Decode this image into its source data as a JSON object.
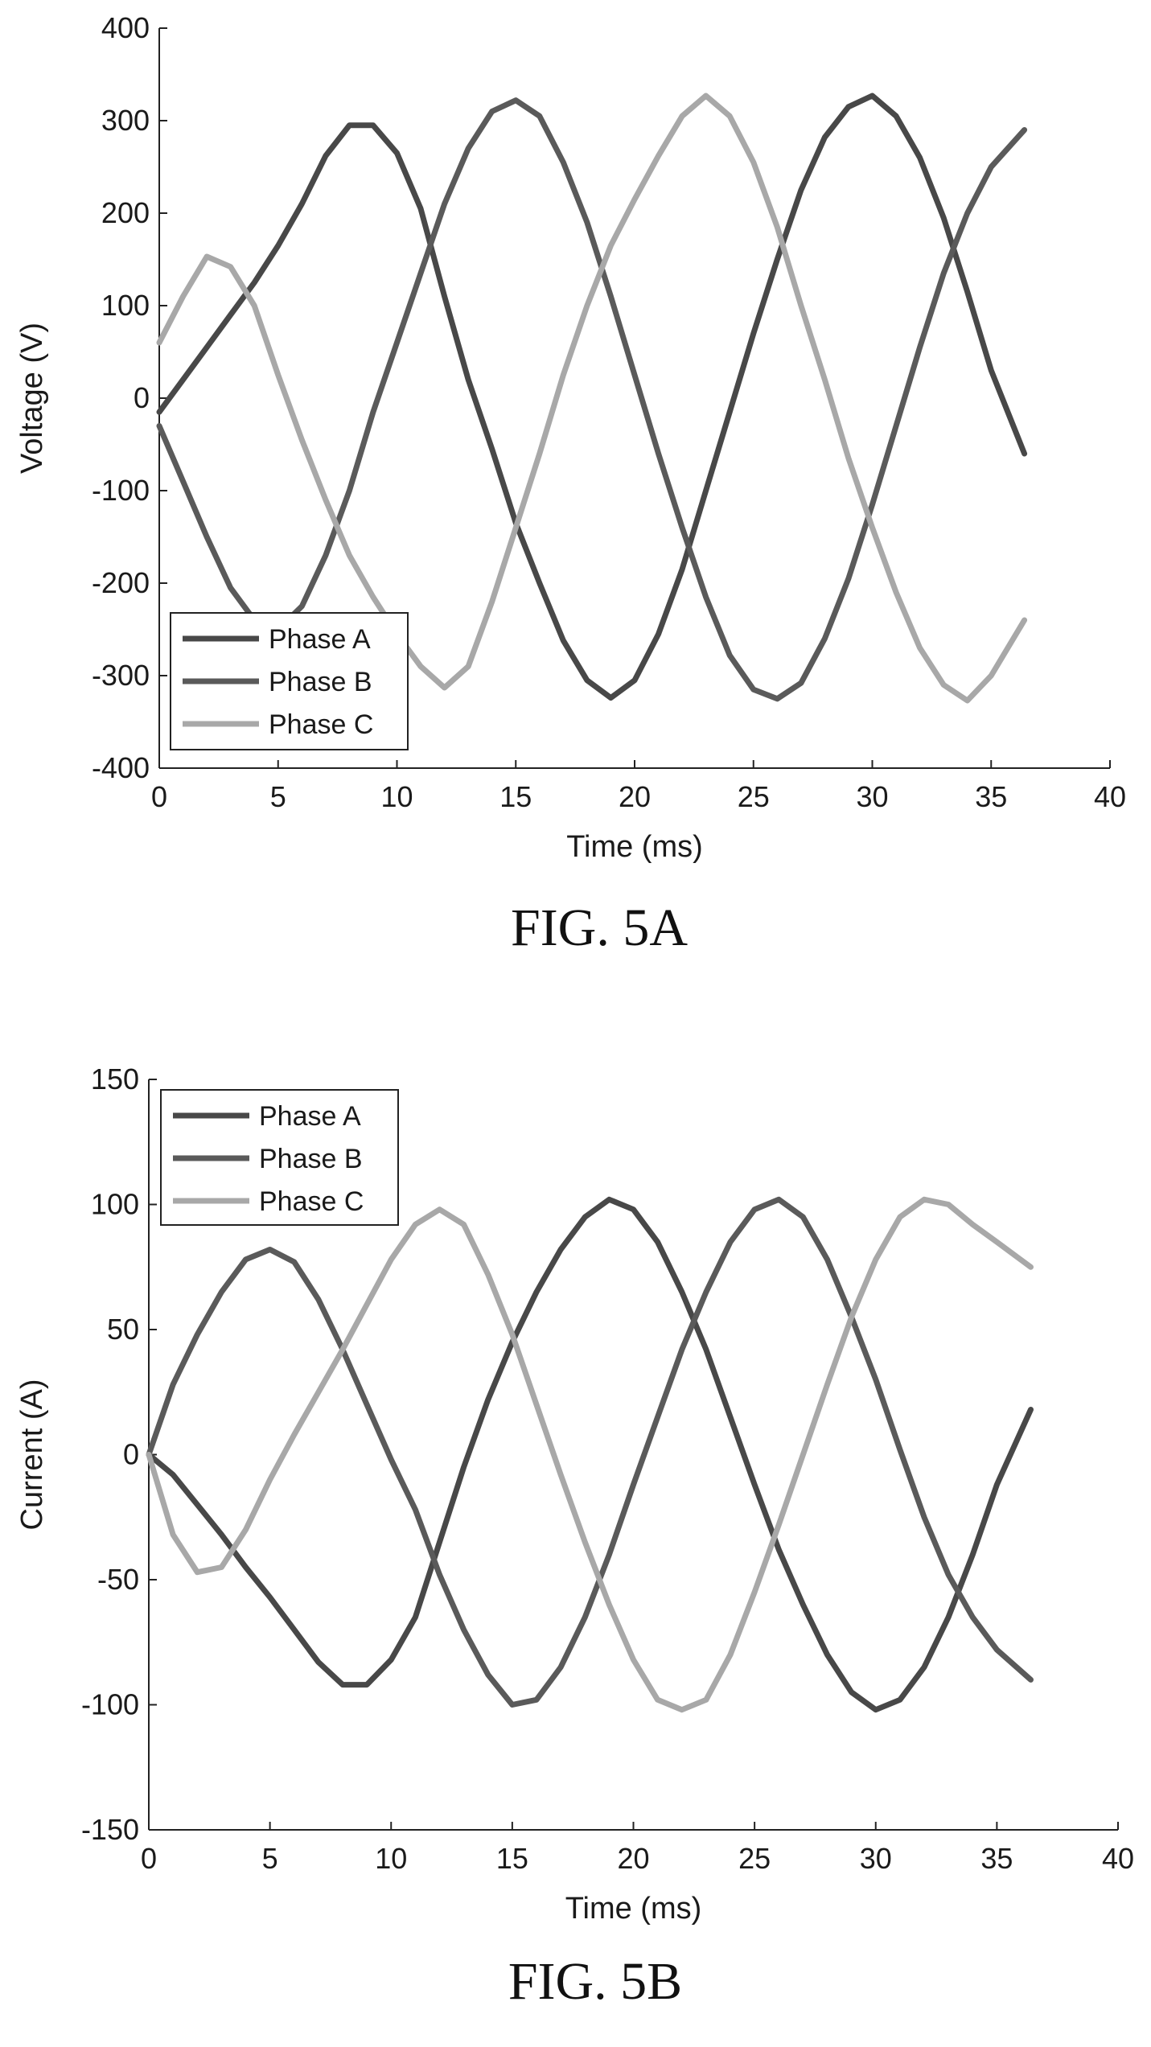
{
  "chart_data": [
    {
      "type": "line",
      "caption": "FIG. 5A",
      "xlabel": "Time (ms)",
      "ylabel": "Voltage (V)",
      "xlim": [
        0,
        40
      ],
      "ylim": [
        -400,
        400
      ],
      "xticks": [
        0,
        5,
        10,
        15,
        20,
        25,
        30,
        35,
        40
      ],
      "yticks": [
        -400,
        -300,
        -200,
        -100,
        0,
        100,
        200,
        300,
        400
      ],
      "xtick_labels": [
        "0",
        "5",
        "10",
        "15",
        "20",
        "25",
        "30",
        "35",
        "40"
      ],
      "ytick_labels": [
        "-400",
        "-300",
        "-200",
        "-100",
        "0",
        "100",
        "200",
        "300",
        "400"
      ],
      "legend_position": "bottom-left",
      "grid": false,
      "series": [
        {
          "name": "Phase A",
          "color": "#484848",
          "x": [
            0,
            1,
            2,
            3,
            4,
            5,
            6,
            7,
            8,
            9,
            10,
            11,
            12,
            13,
            14,
            15,
            16,
            17,
            18,
            19,
            20,
            21,
            22,
            23,
            24,
            25,
            26,
            27,
            28,
            29,
            30,
            31,
            32,
            33,
            34,
            35,
            36.4
          ],
          "y": [
            -15,
            20,
            55,
            90,
            125,
            165,
            210,
            262,
            295,
            295,
            265,
            205,
            110,
            20,
            -55,
            -135,
            -200,
            -262,
            -305,
            -324,
            -305,
            -255,
            -185,
            -100,
            -15,
            70,
            150,
            225,
            282,
            315,
            327,
            305,
            260,
            195,
            115,
            30,
            -60
          ]
        },
        {
          "name": "Phase B",
          "color": "#5a5a5a",
          "x": [
            0,
            1,
            2,
            3,
            4,
            5,
            6,
            7,
            8,
            9,
            10,
            11,
            12,
            13,
            14,
            15,
            16,
            17,
            18,
            19,
            20,
            21,
            22,
            23,
            24,
            25,
            26,
            27,
            28,
            29,
            30,
            31,
            32,
            33,
            34,
            35,
            36.4
          ],
          "y": [
            -30,
            -90,
            -150,
            -205,
            -240,
            -250,
            -225,
            -170,
            -100,
            -15,
            60,
            135,
            210,
            270,
            310,
            322,
            305,
            255,
            190,
            110,
            25,
            -60,
            -140,
            -215,
            -278,
            -315,
            -325,
            -308,
            -260,
            -195,
            -115,
            -30,
            55,
            135,
            200,
            250,
            290
          ]
        },
        {
          "name": "Phase C",
          "color": "#a8a8a8",
          "x": [
            0,
            1,
            2,
            3,
            4,
            5,
            6,
            7,
            8,
            9,
            10,
            11,
            12,
            13,
            14,
            15,
            16,
            17,
            18,
            19,
            20,
            21,
            22,
            23,
            24,
            25,
            26,
            27,
            28,
            29,
            30,
            31,
            32,
            33,
            34,
            35,
            36.4
          ],
          "y": [
            60,
            110,
            153,
            142,
            100,
            25,
            -45,
            -110,
            -170,
            -215,
            -255,
            -290,
            -313,
            -290,
            -220,
            -140,
            -60,
            25,
            100,
            165,
            215,
            262,
            305,
            327,
            305,
            255,
            185,
            100,
            20,
            -65,
            -140,
            -210,
            -270,
            -310,
            -327,
            -300,
            -240
          ]
        }
      ]
    },
    {
      "type": "line",
      "caption": "FIG. 5B",
      "xlabel": "Time (ms)",
      "ylabel": "Current (A)",
      "xlim": [
        0,
        40
      ],
      "ylim": [
        -150,
        150
      ],
      "xticks": [
        0,
        5,
        10,
        15,
        20,
        25,
        30,
        35,
        40
      ],
      "yticks": [
        -150,
        -100,
        -50,
        0,
        50,
        100,
        150
      ],
      "xtick_labels": [
        "0",
        "5",
        "10",
        "15",
        "20",
        "25",
        "30",
        "35",
        "40"
      ],
      "ytick_labels": [
        "-150",
        "-100",
        "-50",
        "0",
        "50",
        "100",
        "150"
      ],
      "legend_position": "top-left",
      "grid": false,
      "series": [
        {
          "name": "Phase A",
          "color": "#484848",
          "x": [
            0,
            1,
            2,
            3,
            4,
            5,
            6,
            7,
            8,
            9,
            10,
            11,
            12,
            13,
            14,
            15,
            16,
            17,
            18,
            19,
            20,
            21,
            22,
            23,
            24,
            25,
            26,
            27,
            28,
            29,
            30,
            31,
            32,
            33,
            34,
            35,
            36.4
          ],
          "y": [
            0,
            -8,
            -20,
            -32,
            -45,
            -57,
            -70,
            -83,
            -92,
            -92,
            -82,
            -65,
            -35,
            -5,
            22,
            45,
            65,
            82,
            95,
            102,
            98,
            85,
            65,
            42,
            15,
            -12,
            -38,
            -60,
            -80,
            -95,
            -102,
            -98,
            -85,
            -65,
            -40,
            -12,
            18
          ]
        },
        {
          "name": "Phase B",
          "color": "#5a5a5a",
          "x": [
            0,
            1,
            2,
            3,
            4,
            5,
            6,
            7,
            8,
            9,
            10,
            11,
            12,
            13,
            14,
            15,
            16,
            17,
            18,
            19,
            20,
            21,
            22,
            23,
            24,
            25,
            26,
            27,
            28,
            29,
            30,
            31,
            32,
            33,
            34,
            35,
            36.4
          ],
          "y": [
            0,
            28,
            48,
            65,
            78,
            82,
            77,
            62,
            42,
            20,
            -2,
            -22,
            -48,
            -70,
            -88,
            -100,
            -98,
            -85,
            -65,
            -40,
            -12,
            15,
            42,
            65,
            85,
            98,
            102,
            95,
            78,
            55,
            30,
            2,
            -25,
            -48,
            -65,
            -78,
            -90
          ]
        },
        {
          "name": "Phase C",
          "color": "#a8a8a8",
          "x": [
            0,
            1,
            2,
            3,
            4,
            5,
            6,
            7,
            8,
            9,
            10,
            11,
            12,
            13,
            14,
            15,
            16,
            17,
            18,
            19,
            20,
            21,
            22,
            23,
            24,
            25,
            26,
            27,
            28,
            29,
            30,
            31,
            32,
            33,
            34,
            35,
            36.4
          ],
          "y": [
            0,
            -32,
            -47,
            -45,
            -30,
            -10,
            8,
            25,
            42,
            60,
            78,
            92,
            98,
            92,
            72,
            48,
            20,
            -8,
            -35,
            -60,
            -82,
            -98,
            -102,
            -98,
            -80,
            -55,
            -28,
            0,
            28,
            55,
            78,
            95,
            102,
            100,
            92,
            85,
            75
          ]
        }
      ]
    }
  ]
}
